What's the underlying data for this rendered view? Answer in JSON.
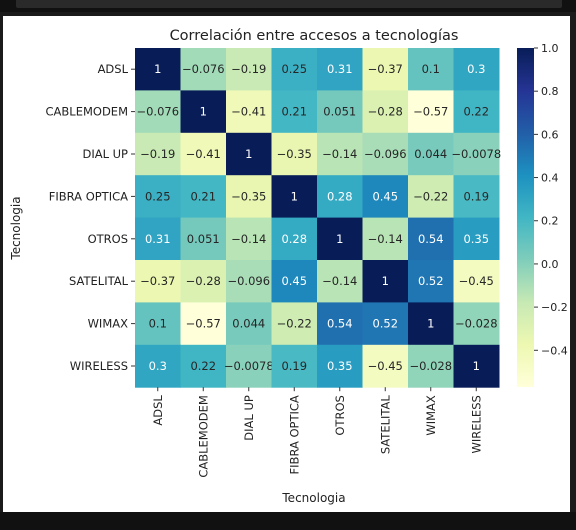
{
  "chart_data": {
    "type": "heatmap",
    "title": "Correlación entre accesos a tecnologías",
    "xlabel": "Tecnologia",
    "ylabel": "Tecnologia",
    "row_labels": [
      "ADSL",
      "CABLEMODEM",
      "DIAL UP",
      "FIBRA OPTICA",
      "OTROS",
      "SATELITAL",
      "WIMAX",
      "WIRELESS"
    ],
    "col_labels": [
      "ADSL",
      "CABLEMODEM",
      "DIAL UP",
      "FIBRA OPTICA",
      "OTROS",
      "SATELITAL",
      "WIMAX",
      "WIRELESS"
    ],
    "values": [
      [
        1,
        -0.076,
        -0.19,
        0.25,
        0.31,
        -0.37,
        0.1,
        0.3
      ],
      [
        -0.076,
        1,
        -0.41,
        0.21,
        0.051,
        -0.28,
        -0.57,
        0.22
      ],
      [
        -0.19,
        -0.41,
        1,
        -0.35,
        -0.14,
        -0.096,
        0.044,
        -0.0078
      ],
      [
        0.25,
        0.21,
        -0.35,
        1,
        0.28,
        0.45,
        -0.22,
        0.19
      ],
      [
        0.31,
        0.051,
        -0.14,
        0.28,
        1,
        -0.14,
        0.54,
        0.35
      ],
      [
        -0.37,
        -0.28,
        -0.096,
        0.45,
        -0.14,
        1,
        0.52,
        -0.45
      ],
      [
        0.1,
        -0.57,
        0.044,
        -0.22,
        0.54,
        0.52,
        1,
        -0.028
      ],
      [
        0.3,
        0.22,
        -0.0078,
        0.19,
        0.35,
        -0.45,
        -0.028,
        1
      ]
    ],
    "colormap": "YlGnBu",
    "vmin": -0.57,
    "vmax": 1.0,
    "colorbar_ticks": [
      1.0,
      0.8,
      0.6,
      0.4,
      0.2,
      0.0,
      -0.2,
      -0.4
    ],
    "colorbar_tick_labels": [
      "1.0",
      "0.8",
      "0.6",
      "0.4",
      "0.2",
      "0.0",
      "−0.2",
      "−0.4"
    ],
    "annotations": "cell values shown in each cell",
    "legend": "colorbar right"
  }
}
